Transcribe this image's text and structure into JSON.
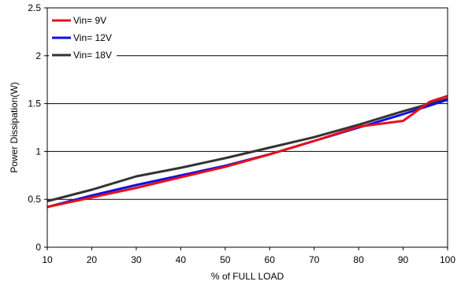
{
  "chart_data": {
    "type": "line",
    "xlabel": "% of FULL LOAD",
    "ylabel": "Power Dissipation(W)",
    "xlim": [
      10,
      100
    ],
    "ylim": [
      0,
      2.5
    ],
    "x_ticks": [
      "10",
      "20",
      "30",
      "40",
      "50",
      "60",
      "70",
      "80",
      "90",
      "100"
    ],
    "y_ticks": [
      "0",
      "0.5",
      "1",
      "1.5",
      "2",
      "2.5"
    ],
    "grid": "horizontal",
    "legend_position": "top-left",
    "series": [
      {
        "name": "Vin= 9V",
        "color": "#e8101a",
        "x": [
          10,
          20,
          30,
          40,
          50,
          60,
          70,
          80,
          90,
          96,
          100
        ],
        "y": [
          0.42,
          0.52,
          0.62,
          0.73,
          0.84,
          0.97,
          1.11,
          1.26,
          1.32,
          1.52,
          1.58
        ]
      },
      {
        "name": "Vin= 12V",
        "color": "#1010e0",
        "x": [
          10,
          20,
          30,
          40,
          50,
          60,
          70,
          80,
          90,
          100
        ],
        "y": [
          0.42,
          0.54,
          0.65,
          0.75,
          0.85,
          0.97,
          1.11,
          1.25,
          1.39,
          1.54
        ]
      },
      {
        "name": "Vin= 18V",
        "color": "#333333",
        "x": [
          10,
          20,
          30,
          40,
          50,
          60,
          70,
          80,
          90,
          100
        ],
        "y": [
          0.48,
          0.6,
          0.74,
          0.83,
          0.93,
          1.04,
          1.15,
          1.28,
          1.42,
          1.55
        ]
      }
    ]
  }
}
